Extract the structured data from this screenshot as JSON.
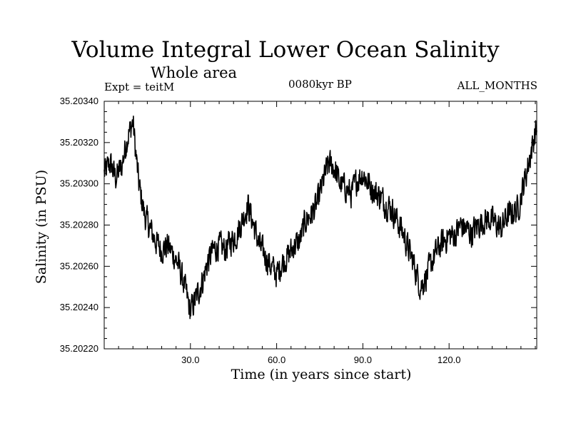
{
  "chart_data": {
    "type": "line",
    "title": "Volume Integral Lower Ocean Salinity",
    "subtitle": "Whole area",
    "experiment_label": "Expt = teitM",
    "period_label": "0080kyr BP",
    "months_label": "ALL_MONTHS",
    "xlabel": "Time (in years since start)",
    "ylabel": "Salinity (in PSU)",
    "xlim": [
      0,
      150.5
    ],
    "ylim": [
      35.2022,
      35.2034
    ],
    "x_ticks": [
      30,
      60,
      90,
      120
    ],
    "x_tick_labels": [
      "30.0",
      "60.0",
      "90.0",
      "120.0"
    ],
    "y_ticks": [
      35.2022,
      35.2024,
      35.2026,
      35.2028,
      35.203,
      35.2032,
      35.2034
    ],
    "y_tick_labels": [
      "35.20220",
      "35.20240",
      "35.20260",
      "35.20280",
      "35.20300",
      "35.20320",
      "35.20340"
    ],
    "series": [
      {
        "name": "Volume Integral Lower Ocean Salinity",
        "color": "#000000",
        "x": [
          0,
          2,
          4,
          6,
          8,
          10,
          12,
          14,
          16,
          18,
          20,
          22,
          24,
          26,
          28,
          30,
          32,
          34,
          36,
          38,
          40,
          42,
          44,
          46,
          48,
          50,
          52,
          54,
          56,
          58,
          60,
          62,
          64,
          66,
          68,
          70,
          72,
          74,
          76,
          78,
          80,
          82,
          84,
          86,
          88,
          90,
          92,
          94,
          96,
          98,
          100,
          102,
          104,
          106,
          108,
          110,
          112,
          114,
          116,
          118,
          120,
          122,
          124,
          126,
          128,
          130,
          132,
          134,
          136,
          138,
          140,
          142,
          144,
          146,
          148,
          150
        ],
        "values": [
          35.20305,
          35.2031,
          35.20303,
          35.20308,
          35.20322,
          35.2033,
          35.203,
          35.20285,
          35.20278,
          35.20272,
          35.20268,
          35.2027,
          35.20266,
          35.2026,
          35.2025,
          35.20238,
          35.20245,
          35.20252,
          35.20262,
          35.20268,
          35.2027,
          35.20268,
          35.20272,
          35.20275,
          35.20282,
          35.2029,
          35.2028,
          35.2027,
          35.20265,
          35.2026,
          35.20256,
          35.20262,
          35.20265,
          35.2027,
          35.20272,
          35.20282,
          35.20285,
          35.2029,
          35.203,
          35.2031,
          35.20308,
          35.203,
          35.20298,
          35.20295,
          35.20302,
          35.20305,
          35.203,
          35.20296,
          35.20294,
          35.2029,
          35.20288,
          35.20282,
          35.20276,
          35.20268,
          35.2026,
          35.2025,
          35.20255,
          35.20262,
          35.20268,
          35.20272,
          35.20275,
          35.20275,
          35.2028,
          35.20278,
          35.20276,
          35.2028,
          35.20282,
          35.20283,
          35.20281,
          35.20278,
          35.20284,
          35.20286,
          35.20288,
          35.203,
          35.20312,
          35.20325
        ]
      }
    ]
  }
}
